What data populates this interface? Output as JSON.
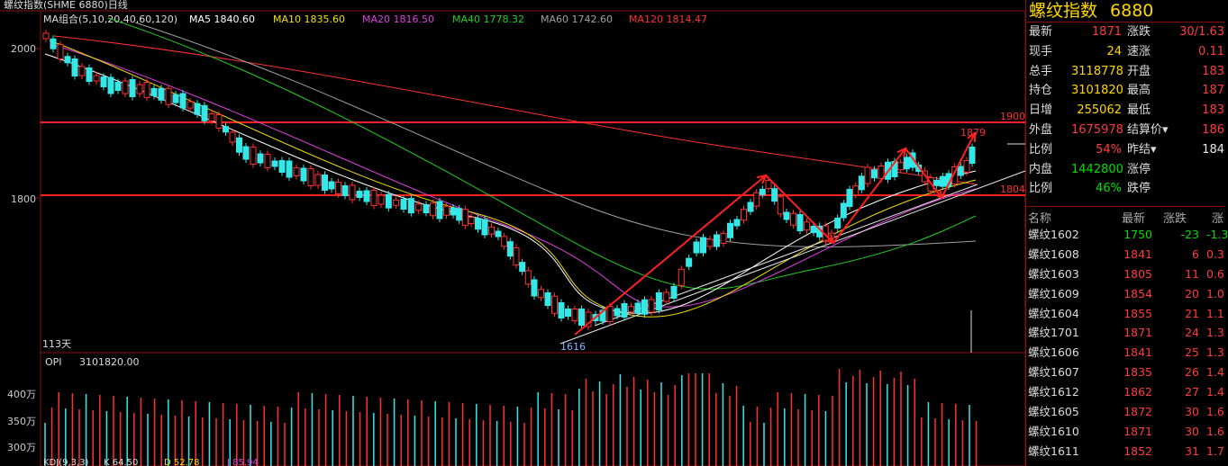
{
  "header": {
    "symbol_name": "螺纹指数(SHME 6880)日线",
    "ma_group": "MA组合(5,10,20,40,60,120)",
    "ma_items": [
      {
        "text": "MA5 1840.60",
        "color": "#ffffff"
      },
      {
        "text": "MA10 1835.60",
        "color": "#f0e000"
      },
      {
        "text": "MA20 1816.50",
        "color": "#e040e0"
      },
      {
        "text": "MA40 1778.32",
        "color": "#20d020"
      },
      {
        "text": "MA60 1742.60",
        "color": "#a0a0a0"
      },
      {
        "text": "MA120 1814.47",
        "color": "#ff3030"
      }
    ]
  },
  "price_axis": {
    "labels": [
      "2000",
      "1800"
    ]
  },
  "annotations": {
    "h1_label": "1900",
    "h2_label": "1804",
    "high_label": "1879",
    "low_label": "1616",
    "days_label": "113天"
  },
  "volume": {
    "opi_label": "OPI",
    "opi_value": "3101820.00",
    "axis_labels": [
      "400万",
      "350万",
      "300万"
    ],
    "kdj_label": "KDJ(9,3,3)",
    "k_text": "K  64.50",
    "d_text": "D  52.78",
    "j_text": "J  85.94"
  },
  "quote": {
    "name": "螺纹指数",
    "code": "6880",
    "rows": [
      {
        "l1": "最新",
        "v1": "1871",
        "c1": "red",
        "l2": "涨跌",
        "v2": "30/1.63",
        "c2": "red"
      },
      {
        "l1": "现手",
        "v1": "24",
        "c1": "yel",
        "l2": "速涨",
        "v2": "0.11",
        "c2": "red"
      },
      {
        "l1": "总手",
        "v1": "3118778",
        "c1": "yel",
        "l2": "开盘",
        "v2": "183",
        "c2": "red"
      },
      {
        "l1": "持仓",
        "v1": "3101820",
        "c1": "yel",
        "l2": "最高",
        "v2": "187",
        "c2": "red"
      },
      {
        "l1": "日增",
        "v1": "255062",
        "c1": "yel",
        "l2": "最低",
        "v2": "183",
        "c2": "red"
      },
      {
        "l1": "外盘",
        "v1": "1675978",
        "c1": "red",
        "l2": "结算价▾",
        "v2": "186",
        "c2": "red"
      },
      {
        "l1": "比例",
        "v1": "54%",
        "c1": "red",
        "l2": "昨结▾",
        "v2": "184",
        "c2": "wht"
      },
      {
        "l1": "内盘",
        "v1": "1442800",
        "c1": "grn",
        "l2": "涨停",
        "v2": "",
        "c2": "wht"
      },
      {
        "l1": "比例",
        "v1": "46%",
        "c1": "grn",
        "l2": "跌停",
        "v2": "",
        "c2": "wht"
      }
    ]
  },
  "list": {
    "headers": [
      "名称",
      "最新",
      "涨跌",
      "涨"
    ],
    "rows": [
      {
        "name": "螺纹1602",
        "price": "1750",
        "chg": "-23",
        "pct": "-1.3",
        "color": "grn"
      },
      {
        "name": "螺纹1608",
        "price": "1841",
        "chg": "6",
        "pct": "0.3",
        "color": "red"
      },
      {
        "name": "螺纹1603",
        "price": "1805",
        "chg": "11",
        "pct": "0.6",
        "color": "red"
      },
      {
        "name": "螺纹1609",
        "price": "1854",
        "chg": "20",
        "pct": "1.0",
        "color": "red"
      },
      {
        "name": "螺纹1604",
        "price": "1855",
        "chg": "21",
        "pct": "1.1",
        "color": "red"
      },
      {
        "name": "螺纹1701",
        "price": "1871",
        "chg": "24",
        "pct": "1.3",
        "color": "red"
      },
      {
        "name": "螺纹1606",
        "price": "1841",
        "chg": "25",
        "pct": "1.3",
        "color": "red"
      },
      {
        "name": "螺纹1607",
        "price": "1835",
        "chg": "26",
        "pct": "1.4",
        "color": "red"
      },
      {
        "name": "螺纹1612",
        "price": "1862",
        "chg": "27",
        "pct": "1.4",
        "color": "red"
      },
      {
        "name": "螺纹1605",
        "price": "1872",
        "chg": "30",
        "pct": "1.6",
        "color": "red"
      },
      {
        "name": "螺纹1610",
        "price": "1871",
        "chg": "30",
        "pct": "1.6",
        "color": "red"
      },
      {
        "name": "螺纹1611",
        "price": "1852",
        "chg": "31",
        "pct": "1.7",
        "color": "red"
      }
    ]
  }
}
